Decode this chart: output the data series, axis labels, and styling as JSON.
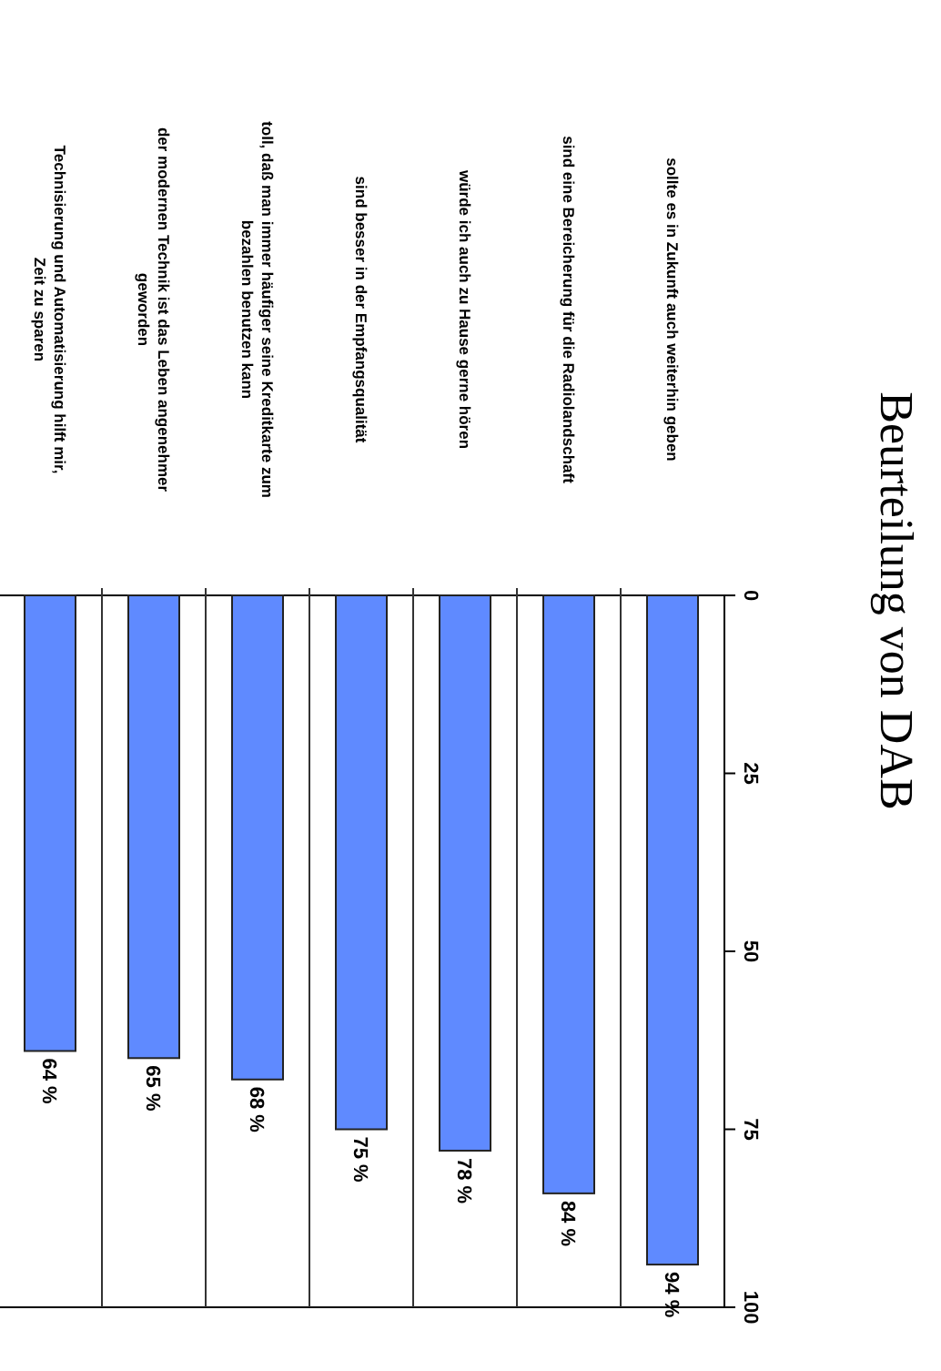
{
  "chart_data": {
    "type": "bar",
    "title": "Beurteilung von DAB",
    "categories": [
      "Technisierung und Automatisierung hilft mir,\nZeit zu sparen",
      "der modernen Technik ist das Leben angenehmer\ngeworden",
      "toll, daß man immer häufiger seine Kreditkarte zum\nbezahlen benutzen kann",
      "sind besser in der Empfangsqualität",
      "würde ich auch zu Hause gerne hören",
      "sind eine Bereicherung für die Radiolandschaft",
      "sollte es in Zukunft auch weiterhin geben"
    ],
    "values": [
      64,
      65,
      68,
      75,
      78,
      84,
      94
    ],
    "value_labels": [
      "64 %",
      "65 %",
      "68 %",
      "75 %",
      "78 %",
      "84 %",
      "94 %"
    ],
    "color": "#5f8aff",
    "ylim": [
      100,
      0
    ],
    "yticks": [
      0,
      25,
      50,
      75,
      100
    ],
    "grid": false
  }
}
